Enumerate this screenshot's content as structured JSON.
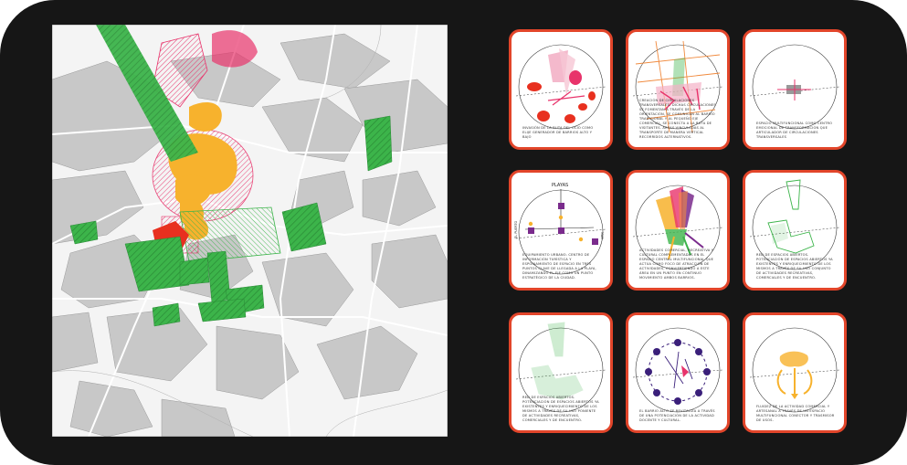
{
  "map": {
    "colors": {
      "built": "#c8c8c8",
      "street": "#fafafa",
      "green": "#3cb44a",
      "orange": "#f7b22d",
      "pink": "#e8336b",
      "red": "#e8301f"
    }
  },
  "cards": [
    {
      "caption": "INVASIÓN DE LA RUTA DEL OCIO COMO ELIJE GENERADOR DE BARRIOS ALTO Y BAJO",
      "icon": "pink-red-blobs-diagram"
    },
    {
      "caption": "CREACIÓN DE CIRCULACIONES TRANSVERSALES. DICHAS CIRCULACIONES SE FOMENTAN A TRAVÉS DE LA ORIENTACIÓN, SE COMUNICAN AL BARRIO TRADICIONAL Y AL PEQUEÑO EJE COMERCIAL, SE CONECTA A LA RUTA DE VISITANTES. ÁREAS VINCULADAS AL TRANSPORTE DE MANERA VERTICAL RECORRIDOS ALTERNATIVOS.",
      "icon": "orange-lines-diagram"
    },
    {
      "caption": "ESPACIO MULTIFUNCIONAL COMO CENTRO EMOCIONAL DE TRANSFORMACIÓN QUE ARTICULADOR DE CIRCULACIONES TRANSVERSALES",
      "icon": "center-node-diagram"
    },
    {
      "caption": "EQUIPAMIENTO URBANO. CENTRO DE INFORMACIÓN TURÍSTICA Y ESPONJAMIENTO DE ESPACIO EN TRES PUNTOS CLAVE DE LLEGADA A LA PLAYA, DINAMIZANDO EL EJE COMO UN PUNTO ESTRATÉGICO DE LA CIUDAD.",
      "icon": "beach-info-diagram",
      "label_top": "PLAYAS",
      "label_left": "EL PUERTO",
      "label_right": "MAR"
    },
    {
      "caption": "ACTIVIDADES COMERCIAL, RECREATIVA Y CULTURAL COMPLEMENTADAS EN EL ESPACIO CENTRAL MULTIFUNCIONAL QUE ACTÚA COMO FOCO DE ATRACCIÓN DE ACTIVIDADES, CONVIERTIENDO A ESTE ÁREA EN UN PUNTO EN CONTINUO MOVIMIENTO AMBOS BARRIOS.",
      "icon": "activity-fan-diagram"
    },
    {
      "caption": "RED DE ESPACIOS ABIERTOS. POTENCIACIÓN DE ESPACIOS ABIERTOS YA EXISTENTES Y ENRIQUECIMIENTO DE LOS MISMOS A TRAVÉS DE SU USO CONJUNTO DE ACTIVIDADES RECREATIVAS, COMERCIALES Y DE ENCUENTRO.",
      "icon": "green-network-diagram"
    },
    {
      "caption": "RED DE ESPACIOS ABIERTOS. POTENCIACIÓN DE ESPACIOS ABIERTOS YA EXISTENTES Y ENRIQUECIMIENTO DE LOS MISMOS A TRAVÉS DE SU USO PONIENTE DE ACTIVIDADES RECREATIVAS, COMERCIALES Y DE ENCUENTRO.",
      "icon": "green-network-diagram-2"
    },
    {
      "caption": "EL BARRIO ALTO SE REVITALIZA A TRAVÉS DE UNA POTENCIACIÓN DE LA ACTIVIDAD DOCENTE Y CULTURAL.",
      "icon": "purple-ring-diagram"
    },
    {
      "caption": "FLUIDEZ DE LA ACTIVIDAD COMERCIAL Y ARTESANAL A TRAVÉS DE UN ESPACIO MULTIFUNCIONAL CONECTOR Y TRASMISOR DE USOS.",
      "icon": "yellow-flow-diagram"
    }
  ]
}
